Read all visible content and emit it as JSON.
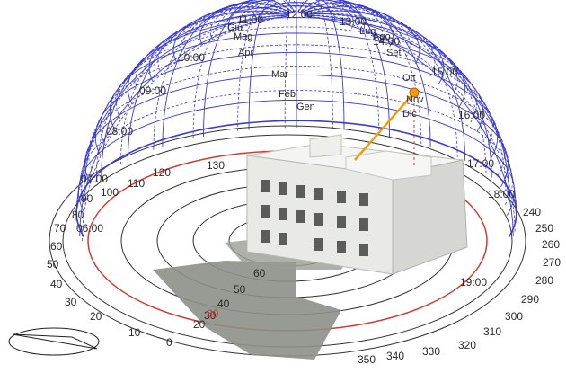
{
  "colors": {
    "dome": "#3a3ad0",
    "sun": "#f39c12",
    "red_circle": "#d33a2f",
    "ground_shadow": "#8d8f88",
    "building": "#ececea"
  },
  "hour_labels": [
    "06:00",
    "07:00",
    "08:00",
    "09:00",
    "10:00",
    "11:00",
    "12:00",
    "13:00",
    "14:00",
    "15:00",
    "16:00",
    "17:00",
    "18:00",
    "19:00"
  ],
  "month_labels": [
    "Giu",
    "Mag",
    "Apr",
    "Mar",
    "Feb",
    "Gen",
    "Lug",
    "Ago",
    "Set",
    "Ott",
    "Nov",
    "Dic"
  ],
  "azimuth_labels": [
    "0",
    "10",
    "20",
    "30",
    "40",
    "50",
    "60",
    "70",
    "80",
    "90",
    "100",
    "110",
    "120",
    "130",
    "240",
    "250",
    "260",
    "270",
    "280",
    "290",
    "300",
    "310",
    "320",
    "330",
    "340",
    "350"
  ],
  "altitude_labels": [
    "20",
    "30",
    "40",
    "50",
    "60",
    "80"
  ],
  "sun_marker": {
    "label": "sun-position"
  },
  "legend_icon": "compass-triangle-icon"
}
